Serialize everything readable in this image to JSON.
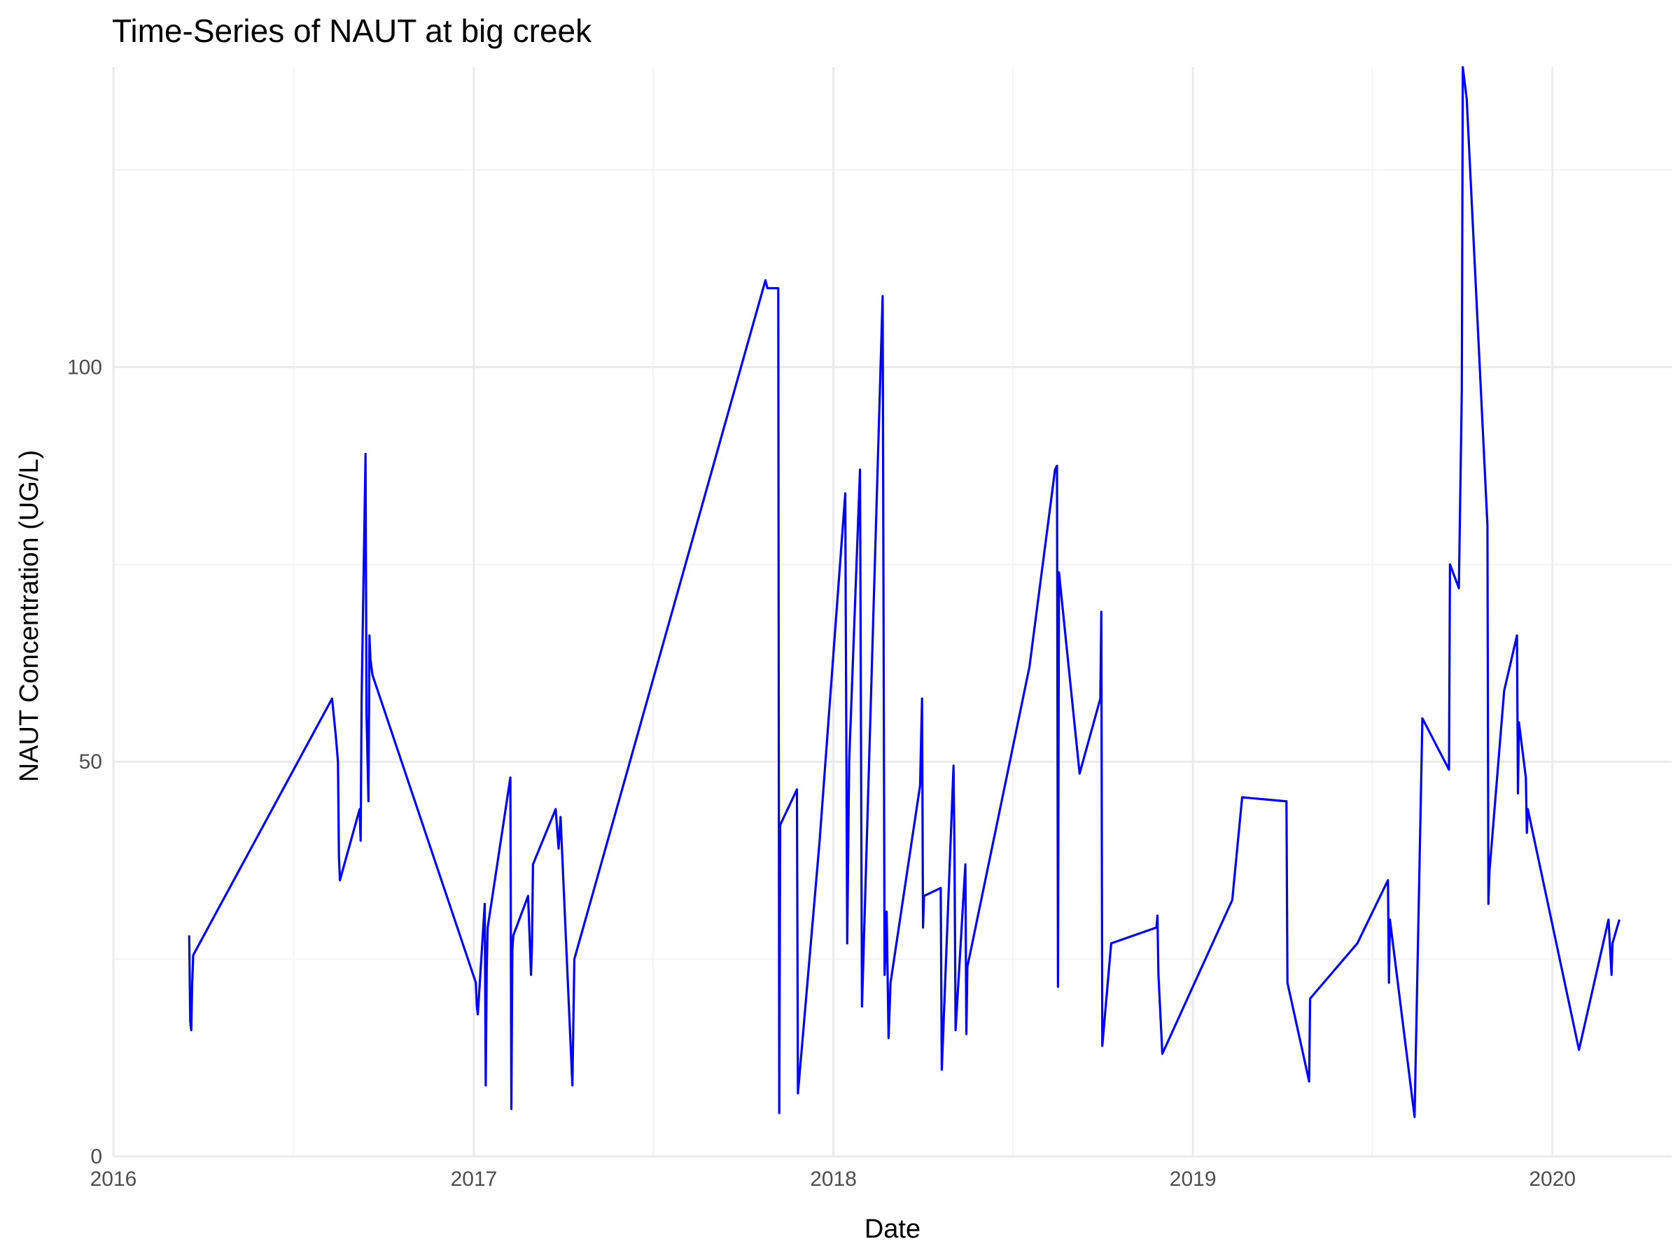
{
  "chart_data": {
    "type": "line",
    "title": "Time-Series of NAUT at big creek",
    "xlabel": "Date",
    "ylabel": "NAUT Concentration (UG/L)",
    "xlim": [
      "2016-01-01",
      "2020-05-01"
    ],
    "ylim": [
      0,
      138
    ],
    "x_ticks": [
      "2016",
      "2017",
      "2018",
      "2019",
      "2020"
    ],
    "y_ticks": [
      0,
      50,
      100
    ],
    "grid": true,
    "legend": "none",
    "color": "#0000ff",
    "series": [
      {
        "x": [
          "2016-03-18",
          "2016-03-19",
          "2016-03-20",
          "2016-03-21",
          "2016-03-22",
          "2016-08-10",
          "2016-08-14",
          "2016-08-16",
          "2016-08-17",
          "2016-08-18",
          "2016-09-07",
          "2016-09-08",
          "2016-09-09",
          "2016-09-13",
          "2016-09-14",
          "2016-09-16",
          "2016-09-17",
          "2016-09-18",
          "2016-09-20",
          "2017-01-03",
          "2017-01-04",
          "2017-01-05",
          "2017-01-12",
          "2017-01-13",
          "2017-01-14",
          "2017-01-15",
          "2017-02-07",
          "2017-02-08",
          "2017-02-09",
          "2017-02-10",
          "2017-02-25",
          "2017-02-28",
          "2017-03-01",
          "2017-03-02",
          "2017-03-25",
          "2017-03-28",
          "2017-03-30",
          "2017-04-11",
          "2017-04-13",
          "2017-10-24",
          "2017-10-26",
          "2017-11-06",
          "2017-11-07",
          "2017-11-08",
          "2017-11-25",
          "2017-11-26",
          "2017-12-18",
          "2018-01-13",
          "2018-01-15",
          "2018-01-17",
          "2018-01-28",
          "2018-01-30",
          "2018-02-20",
          "2018-02-22",
          "2018-02-24",
          "2018-02-26",
          "2018-02-28",
          "2018-03-30",
          "2018-04-01",
          "2018-04-02",
          "2018-04-03",
          "2018-04-20",
          "2018-04-21",
          "2018-05-03",
          "2018-05-04",
          "2018-05-05",
          "2018-05-15",
          "2018-05-16",
          "2018-05-17",
          "2018-07-19",
          "2018-08-14",
          "2018-08-16",
          "2018-08-17",
          "2018-08-18",
          "2018-09-08",
          "2018-09-29",
          "2018-09-30",
          "2018-10-01",
          "2018-10-10",
          "2018-11-25",
          "2018-11-26",
          "2018-11-27",
          "2018-12-01",
          "2019-02-10",
          "2019-02-20",
          "2019-04-05",
          "2019-04-06",
          "2019-04-07",
          "2019-04-29",
          "2019-04-30",
          "2019-06-17",
          "2019-07-18",
          "2019-07-19",
          "2019-07-20",
          "2019-08-14",
          "2019-08-22",
          "2019-09-18",
          "2019-09-19",
          "2019-09-28",
          "2019-10-01",
          "2019-10-02",
          "2019-10-03",
          "2019-10-04",
          "2019-10-05",
          "2019-10-06",
          "2019-10-27",
          "2019-10-28",
          "2019-10-29",
          "2019-11-13",
          "2019-11-26",
          "2019-11-27",
          "2019-11-28",
          "2019-12-05",
          "2019-12-06",
          "2019-12-07",
          "2020-01-28",
          "2020-02-27",
          "2020-03-01",
          "2020-03-02",
          "2020-03-09"
        ],
        "y": [
          28,
          17,
          16,
          22,
          25.5,
          58,
          53,
          50,
          38,
          35,
          44,
          40,
          58,
          89,
          56,
          45,
          66,
          63,
          61,
          22,
          19,
          18,
          32,
          9,
          24,
          29,
          48,
          6,
          26,
          28,
          33,
          23,
          27,
          37,
          44,
          39,
          43,
          9,
          25,
          111,
          110,
          110,
          5.5,
          42,
          46.5,
          8,
          40,
          84,
          27,
          50,
          87,
          19,
          109,
          23,
          31,
          15,
          22,
          47,
          58,
          29,
          33,
          34,
          11,
          49.5,
          38,
          16,
          37,
          15.5,
          24,
          62,
          87,
          87.5,
          21.5,
          74,
          48.5,
          58,
          69,
          14,
          27,
          29,
          30.5,
          23,
          13,
          32.5,
          45.5,
          45,
          45,
          22,
          9.5,
          20,
          27,
          35,
          22,
          30,
          5,
          55.5,
          49,
          75,
          72,
          97,
          138,
          137,
          136,
          135,
          134,
          80,
          32,
          36,
          59,
          66,
          46,
          55,
          48,
          41,
          44,
          13.5,
          30,
          23,
          27,
          30
        ]
      }
    ]
  }
}
